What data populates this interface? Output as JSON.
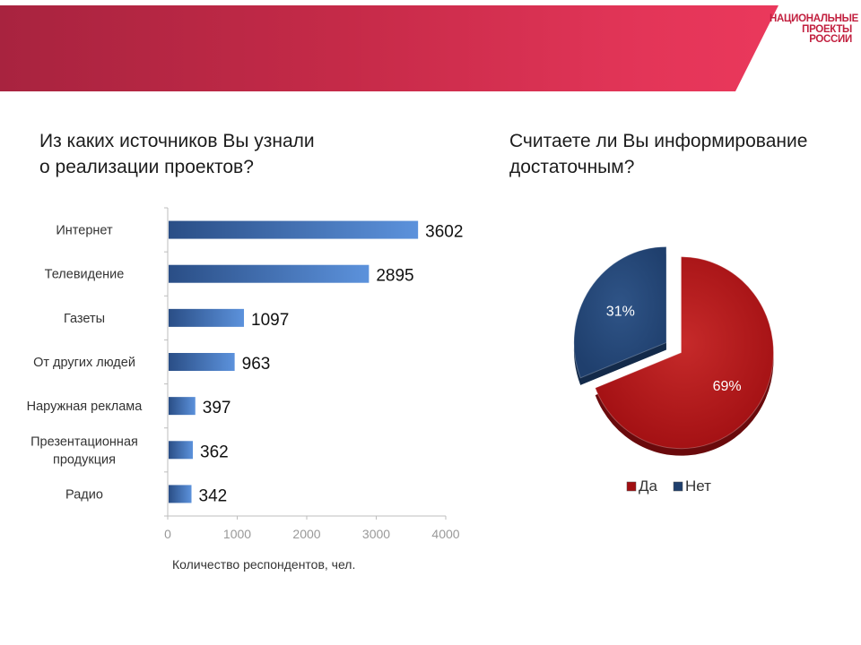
{
  "header": {
    "logo_lines": [
      "НАЦИОНАЛЬНЫЕ",
      "ПРОЕКТЫ",
      "РОССИИ"
    ],
    "banner_colors": [
      "#a8233f",
      "#ef3a5e"
    ]
  },
  "bar_title_lines": [
    "Из каких источников Вы узнали",
    "о реализации проектов?"
  ],
  "pie_title_lines": [
    "Считаете ли Вы информирование",
    "достаточным?"
  ],
  "chart_data": [
    {
      "type": "bar",
      "orientation": "horizontal",
      "categories": [
        "Интернет",
        "Телевидение",
        "Газеты",
        "От других людей",
        "Наружная реклама",
        "Презентационная продукция",
        "Радио"
      ],
      "category_label_lines": [
        [
          "Интернет"
        ],
        [
          "Телевидение"
        ],
        [
          "Газеты"
        ],
        [
          "От других людей"
        ],
        [
          "Наружная реклама"
        ],
        [
          "Презентационная",
          "продукция"
        ],
        [
          "Радио"
        ]
      ],
      "values": [
        3602,
        2895,
        1097,
        963,
        397,
        362,
        342
      ],
      "data_labels": [
        "3602",
        "2895",
        "1097",
        "963",
        "397",
        "362",
        "342"
      ],
      "xlabel": "Количество респондентов, чел.",
      "ylabel": "",
      "xlim": [
        0,
        4000
      ],
      "x_ticks": [
        "0",
        "1000",
        "2000",
        "3000",
        "4000"
      ],
      "grid": false,
      "bar_color_start": "#2a4e86",
      "bar_color_end": "#5c92dc"
    },
    {
      "type": "pie",
      "labels": [
        "Да",
        "Нет"
      ],
      "values": [
        69,
        31
      ],
      "data_labels": [
        "69%",
        "31%"
      ],
      "colors": [
        "#a10f12",
        "#1f3f6d"
      ],
      "exploded": "Нет",
      "legend": [
        "Да",
        "Нет"
      ],
      "legend_placement": "bottom"
    }
  ]
}
